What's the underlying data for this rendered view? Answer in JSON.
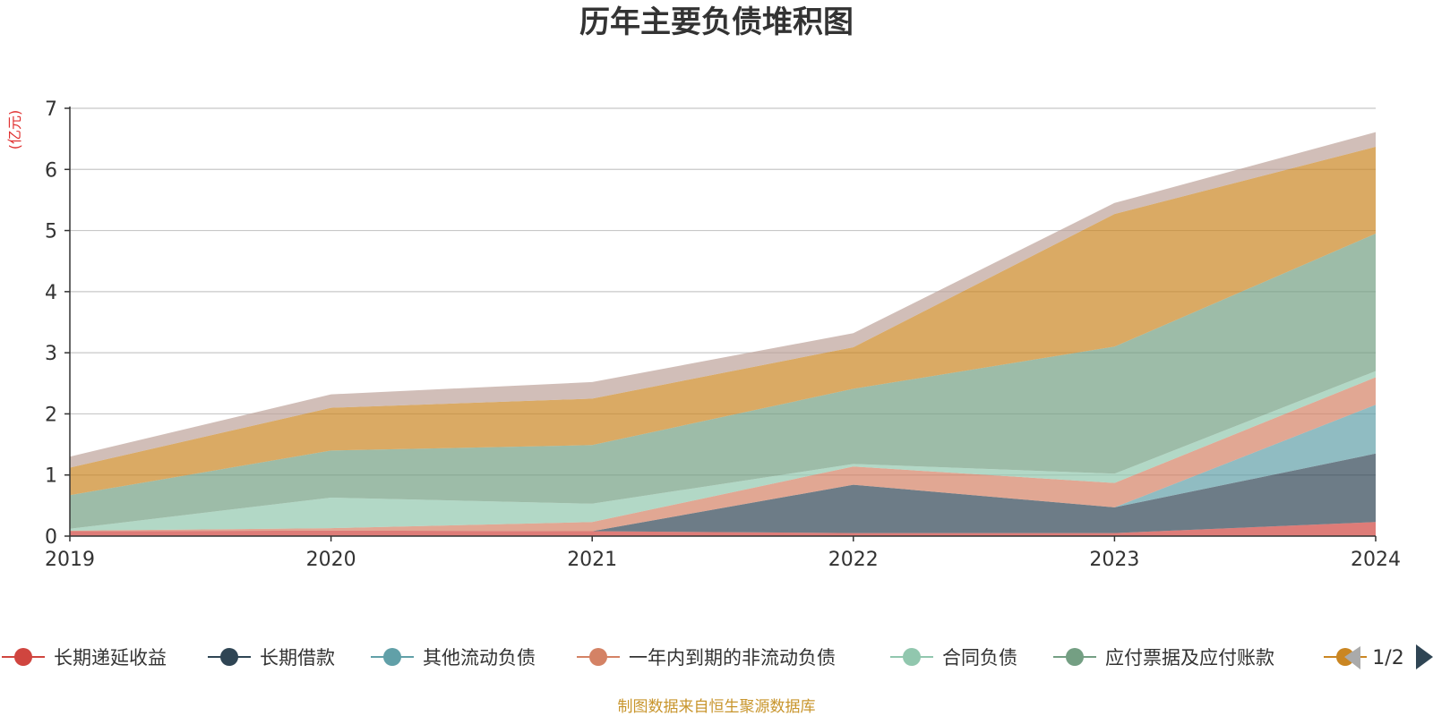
{
  "chart_data": {
    "type": "area",
    "title": "历年主要负债堆积图",
    "ylabel": "(亿元)",
    "xlabel": "",
    "x": [
      "2019",
      "2020",
      "2021",
      "2022",
      "2023",
      "2024"
    ],
    "ylim": [
      0,
      7
    ],
    "yticks": [
      "0",
      "1",
      "2",
      "3",
      "4",
      "5",
      "6",
      "7"
    ],
    "grid": true,
    "stacked": true,
    "series": [
      {
        "name": "长期递延收益",
        "color": "#d0453f",
        "values": [
          0.08,
          0.09,
          0.08,
          0.05,
          0.05,
          0.23
        ]
      },
      {
        "name": "长期借款",
        "color": "#2f4554",
        "values": [
          0.0,
          0.0,
          0.0,
          0.79,
          0.42,
          1.12
        ]
      },
      {
        "name": "其他流动负债",
        "color": "#61a0a8",
        "values": [
          0.0,
          0.0,
          0.0,
          0.0,
          0.0,
          0.8
        ]
      },
      {
        "name": "一年内到期的非流动负债",
        "color": "#d48265",
        "values": [
          0.01,
          0.04,
          0.15,
          0.3,
          0.4,
          0.45
        ]
      },
      {
        "name": "合同负债",
        "color": "#91c7ae",
        "values": [
          0.03,
          0.5,
          0.3,
          0.04,
          0.15,
          0.1
        ]
      },
      {
        "name": "应付票据及应付账款",
        "color": "#749f83",
        "values": [
          0.55,
          0.77,
          0.96,
          1.23,
          2.08,
          2.25
        ]
      },
      {
        "name": "",
        "color": "#ca8622",
        "values": [
          0.45,
          0.7,
          0.76,
          0.68,
          2.17,
          1.42
        ]
      },
      {
        "name": "",
        "color": "#bda29a",
        "values": [
          0.18,
          0.22,
          0.27,
          0.23,
          0.18,
          0.24
        ]
      }
    ],
    "legend": {
      "position": "bottom",
      "items": [
        "长期递延收益",
        "长期借款",
        "其他流动负债",
        "一年内到期的非流动负债",
        "合同负债",
        "应付票据及应付账款",
        ""
      ],
      "page": "1/2"
    },
    "source": "制图数据来自恒生聚源数据库"
  }
}
